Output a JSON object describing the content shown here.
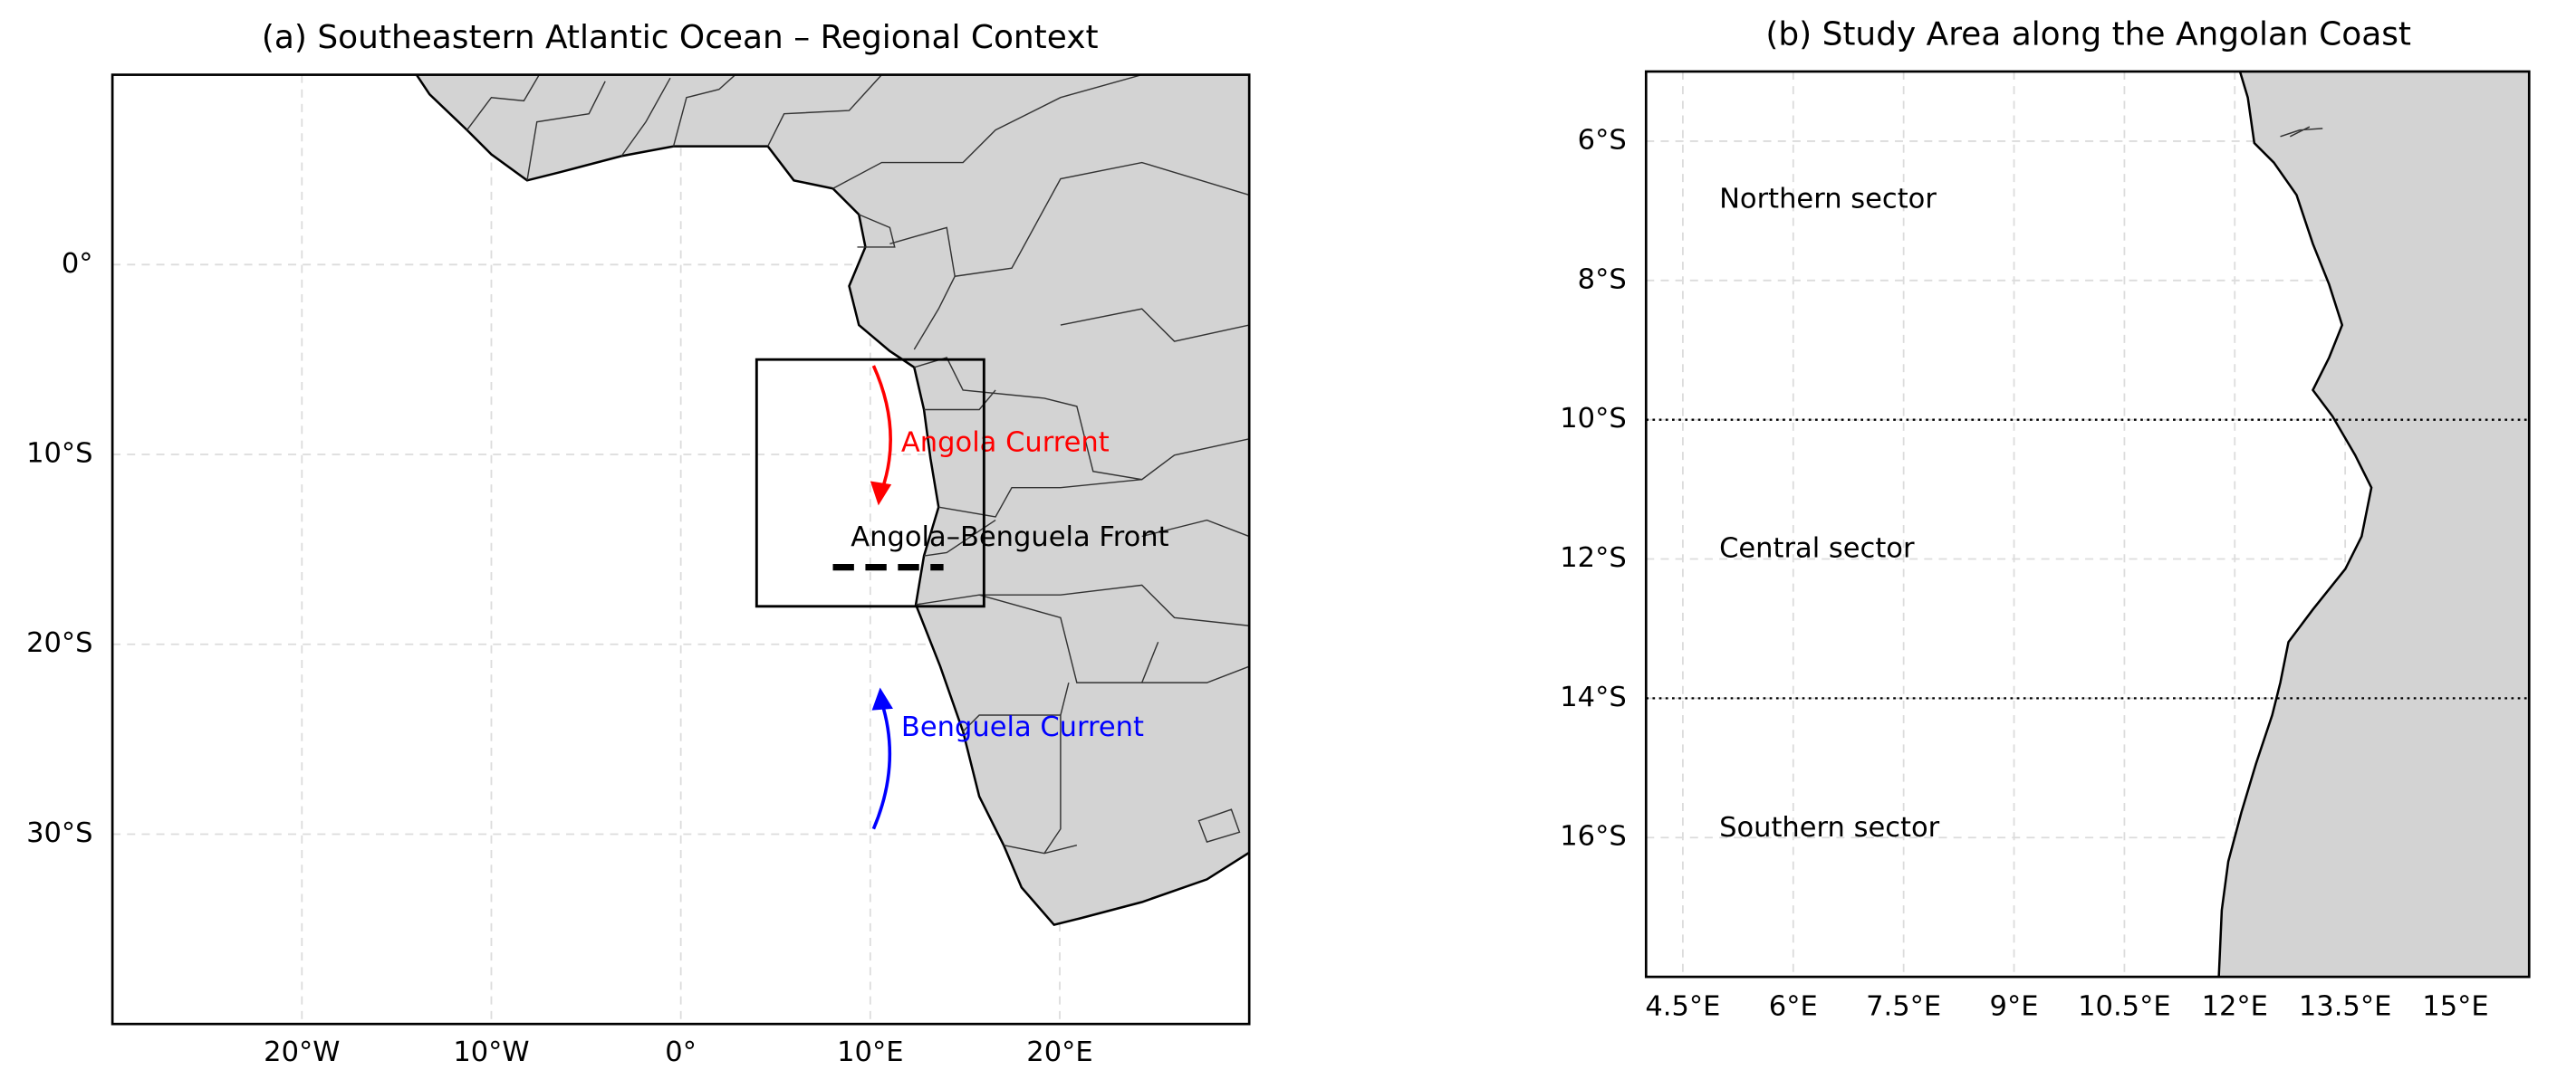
{
  "panels": [
    {
      "title": "(a) Southeastern Atlantic Ocean – Regional Context",
      "xlim": [
        -30,
        30
      ],
      "ylim": [
        -40,
        10
      ],
      "xticks": [
        {
          "value": -20,
          "label": "20°W"
        },
        {
          "value": -10,
          "label": "10°W"
        },
        {
          "value": 0,
          "label": "0°"
        },
        {
          "value": 10,
          "label": "10°E"
        },
        {
          "value": 20,
          "label": "20°E"
        }
      ],
      "yticks": [
        {
          "value": 0,
          "label": "0°"
        },
        {
          "value": -10,
          "label": "10°S"
        },
        {
          "value": -20,
          "label": "20°S"
        },
        {
          "value": -30,
          "label": "30°S"
        }
      ],
      "study_box": {
        "west": 4,
        "east": 16,
        "south": -18,
        "north": -5
      },
      "annotations": [
        "Angola Current",
        "Angola–Benguela Front",
        "Benguela Current"
      ]
    },
    {
      "title": "(b) Study Area along the Angolan Coast",
      "xlim": [
        4,
        16
      ],
      "ylim": [
        -18,
        -5
      ],
      "xticks": [
        {
          "value": 4.5,
          "label": "4.5°E"
        },
        {
          "value": 6,
          "label": "6°E"
        },
        {
          "value": 7.5,
          "label": "7.5°E"
        },
        {
          "value": 9,
          "label": "9°E"
        },
        {
          "value": 10.5,
          "label": "10.5°E"
        },
        {
          "value": 12,
          "label": "12°E"
        },
        {
          "value": 13.5,
          "label": "13.5°E"
        },
        {
          "value": 15,
          "label": "15°E"
        }
      ],
      "yticks": [
        {
          "value": -6,
          "label": "6°S"
        },
        {
          "value": -8,
          "label": "8°S"
        },
        {
          "value": -10,
          "label": "10°S"
        },
        {
          "value": -12,
          "label": "12°S"
        },
        {
          "value": -14,
          "label": "14°S"
        },
        {
          "value": -16,
          "label": "16°S"
        }
      ],
      "sector_boundaries": [
        -10,
        -14
      ],
      "sectors": [
        "Northern sector",
        "Central sector",
        "Southern sector"
      ]
    }
  ]
}
